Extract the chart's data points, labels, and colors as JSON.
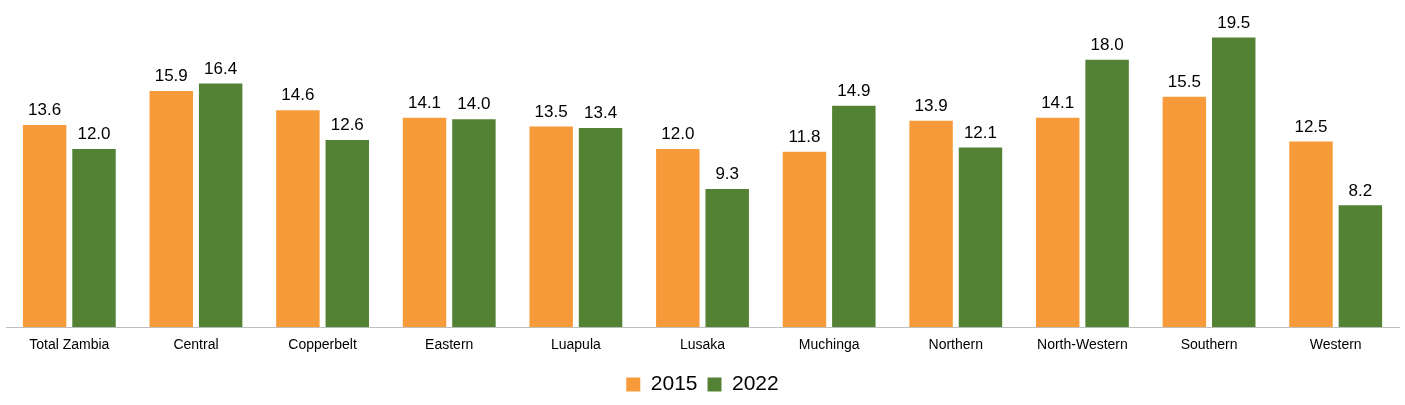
{
  "chart_data": {
    "type": "bar",
    "categories": [
      "Total Zambia",
      "Central",
      "Copperbelt",
      "Eastern",
      "Luapula",
      "Lusaka",
      "Muchinga",
      "Northern",
      "North-Western",
      "Southern",
      "Western"
    ],
    "series": [
      {
        "name": "2015",
        "color": "#f79a3a",
        "values": [
          13.6,
          15.9,
          14.6,
          14.1,
          13.5,
          12.0,
          11.8,
          13.9,
          14.1,
          15.5,
          12.5
        ],
        "value_labels": [
          "13.6",
          "15.9",
          "14.6",
          "14.1",
          "13.5",
          "12.0",
          "11.8",
          "13.9",
          "14.1",
          "15.5",
          "12.5"
        ]
      },
      {
        "name": "2022",
        "color": "#548235",
        "values": [
          12.0,
          16.4,
          12.6,
          14.0,
          13.4,
          9.3,
          14.9,
          12.1,
          18.0,
          19.5,
          8.2
        ],
        "value_labels": [
          "12.0",
          "16.4",
          "12.6",
          "14.0",
          "13.4",
          "9.3",
          "14.9",
          "12.1",
          "18.0",
          "19.5",
          "8.2"
        ]
      }
    ],
    "grid": false,
    "legend": "bottom",
    "tick_labels": "x"
  }
}
